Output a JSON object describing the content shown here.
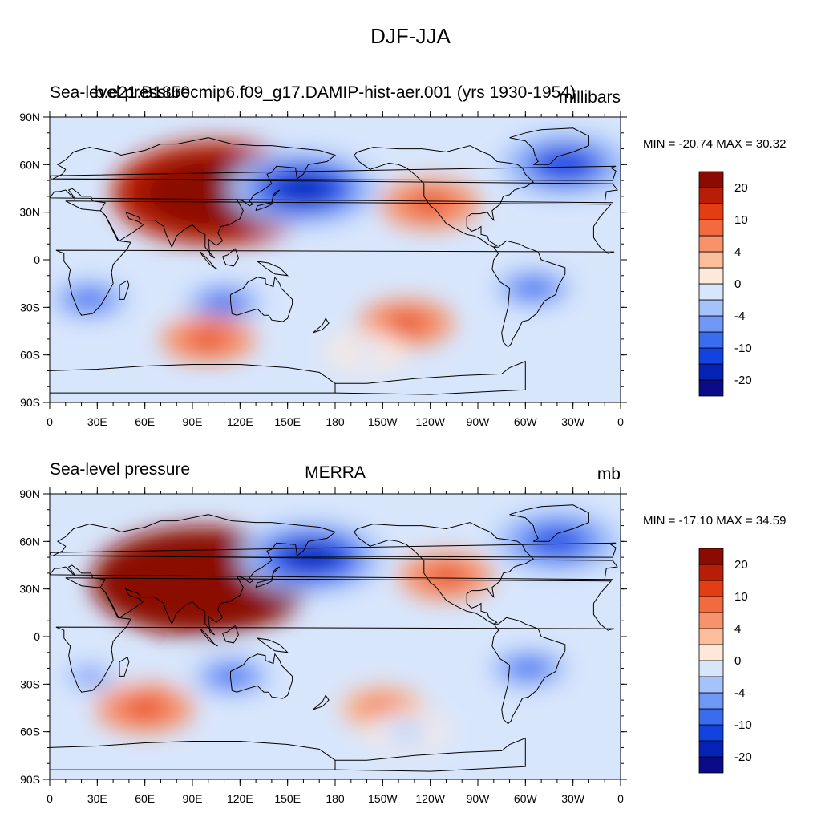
{
  "title": "DJF-JJA",
  "colors": {
    "levels": [
      "#0b0b8a",
      "#0522b4",
      "#1243e0",
      "#3a6cf0",
      "#6f97f5",
      "#a6c2fa",
      "#d8e6fc",
      "#fde8da",
      "#fbbd9a",
      "#f7926b",
      "#f26a3e",
      "#e33d14",
      "#b81e06",
      "#8b0a02"
    ],
    "coast": "#000000"
  },
  "colorbar": {
    "labels": [
      "20",
      "10",
      "4",
      "0",
      "-4",
      "-10",
      "-20"
    ],
    "label_levels": [
      12,
      10,
      8,
      6,
      4,
      2,
      0
    ]
  },
  "panels": [
    {
      "id": "top",
      "left_title": "Sea-level pressure",
      "center_title": "b.e21.B1850cmip6.f09_g17.DAMIP-hist-aer.001 (yrs 1930-1954)",
      "right_title": "millibars",
      "minmax": "MIN = -20.74 MAX =  30.32"
    },
    {
      "id": "bottom",
      "left_title": "Sea-level pressure",
      "center_title": "MERRA",
      "right_title": "mb",
      "minmax": "MIN = -17.10 MAX =  34.59"
    }
  ],
  "axes": {
    "lat_labels": [
      "90N",
      "60N",
      "30N",
      "0",
      "30S",
      "60S",
      "90S"
    ],
    "lon_labels": [
      "0",
      "30E",
      "60E",
      "90E",
      "120E",
      "150E",
      "180",
      "150W",
      "120W",
      "90W",
      "60W",
      "30W",
      "0"
    ]
  },
  "chart_data": [
    {
      "type": "heatmap",
      "title": "DJF-JJA",
      "subtitle": "b.e21.B1850cmip6.f09_g17.DAMIP-hist-aer.001 (yrs 1930-1954)",
      "variable": "Sea-level pressure",
      "units": "millibars",
      "min": -20.74,
      "max": 30.32,
      "x_ticks": [
        "0",
        "30E",
        "60E",
        "90E",
        "120E",
        "150E",
        "180",
        "150W",
        "120W",
        "90W",
        "60W",
        "30W",
        "0"
      ],
      "y_ticks": [
        "90N",
        "60N",
        "30N",
        "0",
        "30S",
        "60S",
        "90S"
      ],
      "contour_levels": [
        -20,
        -15,
        -10,
        -8,
        -6,
        -4,
        -2,
        0,
        2,
        4,
        6,
        8,
        10,
        15,
        20
      ],
      "colorbar_labels": [
        "20",
        "10",
        "4",
        "0",
        "-4",
        "-10",
        "-20"
      ],
      "features": [
        {
          "lon": 105,
          "lat": 42,
          "value": 28
        },
        {
          "lon": 160,
          "lat": 45,
          "value": -17
        },
        {
          "lon": 110,
          "lat": -27,
          "value": -9
        },
        {
          "lon": 25,
          "lat": -25,
          "value": -9
        },
        {
          "lon": -55,
          "lat": -18,
          "value": -9
        },
        {
          "lon": -35,
          "lat": 60,
          "value": -13
        },
        {
          "lon": -120,
          "lat": 35,
          "value": 7
        },
        {
          "lon": 100,
          "lat": -50,
          "value": 6
        },
        {
          "lon": -135,
          "lat": -40,
          "value": 6
        },
        {
          "lon": -160,
          "lat": -58,
          "value": -3
        }
      ]
    },
    {
      "type": "heatmap",
      "title": "DJF-JJA",
      "subtitle": "MERRA",
      "variable": "Sea-level pressure",
      "units": "mb",
      "min": -17.1,
      "max": 34.59,
      "x_ticks": [
        "0",
        "30E",
        "60E",
        "90E",
        "120E",
        "150E",
        "180",
        "150W",
        "120W",
        "90W",
        "60W",
        "30W",
        "0"
      ],
      "y_ticks": [
        "90N",
        "60N",
        "30N",
        "0",
        "30S",
        "60S",
        "90S"
      ],
      "contour_levels": [
        -20,
        -15,
        -10,
        -8,
        -6,
        -4,
        -2,
        0,
        2,
        4,
        6,
        8,
        10,
        15,
        20
      ],
      "colorbar_labels": [
        "20",
        "10",
        "4",
        "0",
        "-4",
        "-10",
        "-20"
      ],
      "features": [
        {
          "lon": 95,
          "lat": 35,
          "value": 30
        },
        {
          "lon": 165,
          "lat": 50,
          "value": -16
        },
        {
          "lon": 115,
          "lat": -25,
          "value": -9
        },
        {
          "lon": 25,
          "lat": -25,
          "value": -7
        },
        {
          "lon": -58,
          "lat": -20,
          "value": -9
        },
        {
          "lon": -40,
          "lat": 60,
          "value": -12
        },
        {
          "lon": -110,
          "lat": 38,
          "value": 6
        },
        {
          "lon": 60,
          "lat": -45,
          "value": 7
        },
        {
          "lon": -150,
          "lat": -45,
          "value": 4
        },
        {
          "lon": -135,
          "lat": -60,
          "value": -4
        }
      ]
    }
  ]
}
